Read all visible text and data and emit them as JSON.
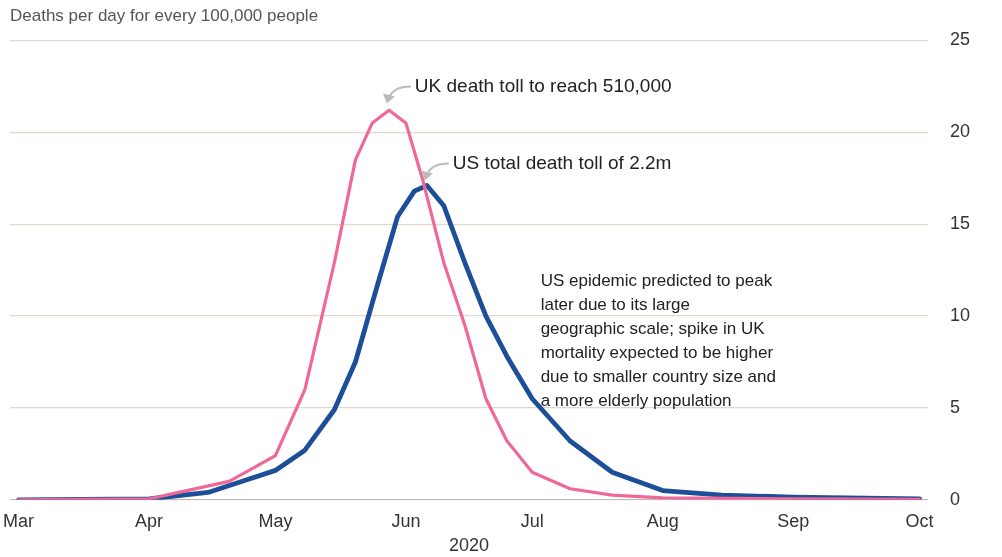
{
  "chart_data": {
    "type": "line",
    "title": "Deaths per day for every 100,000 people",
    "xlabel": "2020",
    "xlim": [
      "2020-02-28",
      "2020-10-03"
    ],
    "xticks": [
      {
        "value": "2020-03-01",
        "label": "Mar"
      },
      {
        "value": "2020-04-01",
        "label": "Apr"
      },
      {
        "value": "2020-05-01",
        "label": "May"
      },
      {
        "value": "2020-06-01",
        "label": "Jun"
      },
      {
        "value": "2020-07-01",
        "label": "Jul"
      },
      {
        "value": "2020-08-01",
        "label": "Aug"
      },
      {
        "value": "2020-09-01",
        "label": "Sep"
      },
      {
        "value": "2020-10-01",
        "label": "Oct"
      }
    ],
    "ylim": [
      0,
      25
    ],
    "yticks": [
      0,
      5,
      10,
      15,
      20,
      25
    ],
    "grid": "y",
    "legend": false,
    "marker": "none",
    "line_style": "solid",
    "series": [
      {
        "color": "#f0679a",
        "x": [
          "2020-03-01",
          "2020-04-01",
          "2020-04-20",
          "2020-05-01",
          "2020-05-08",
          "2020-05-15",
          "2020-05-20",
          "2020-05-24",
          "2020-05-28",
          "2020-06-01",
          "2020-06-05",
          "2020-06-10",
          "2020-06-15",
          "2020-06-20",
          "2020-06-25",
          "2020-07-01",
          "2020-07-10",
          "2020-07-20",
          "2020-08-01",
          "2020-09-01",
          "2020-10-01"
        ],
        "values": [
          0,
          0.05,
          1,
          2.4,
          6,
          12.9,
          18.5,
          20.5,
          21.2,
          20.5,
          17.4,
          12.9,
          9.5,
          5.5,
          3.2,
          1.5,
          0.6,
          0.25,
          0.1,
          0.05,
          0.02
        ]
      },
      {
        "color": "#1d4f99",
        "x": [
          "2020-03-01",
          "2020-04-01",
          "2020-04-15",
          "2020-05-01",
          "2020-05-08",
          "2020-05-15",
          "2020-05-20",
          "2020-05-25",
          "2020-05-30",
          "2020-06-03",
          "2020-06-06",
          "2020-06-10",
          "2020-06-15",
          "2020-06-20",
          "2020-06-25",
          "2020-07-01",
          "2020-07-10",
          "2020-07-20",
          "2020-08-01",
          "2020-08-15",
          "2020-09-01",
          "2020-10-01"
        ],
        "values": [
          0,
          0.05,
          0.4,
          1.6,
          2.7,
          4.9,
          7.5,
          11.5,
          15.4,
          16.8,
          17.1,
          16,
          12.9,
          10,
          7.8,
          5.5,
          3.2,
          1.5,
          0.5,
          0.25,
          0.15,
          0.05
        ]
      }
    ],
    "annotations": [
      {
        "text": "UK death toll to reach 510,000",
        "x": "2020-05-27",
        "y": 21.3
      },
      {
        "text": "US total death toll of 2.2m",
        "x": "2020-06-05",
        "y": 17.1
      },
      "US epidemic predicted to peak later due to its large geographic scale; spike in UK mortality expected to be higher due to smaller country size and a more elderly population"
    ]
  }
}
